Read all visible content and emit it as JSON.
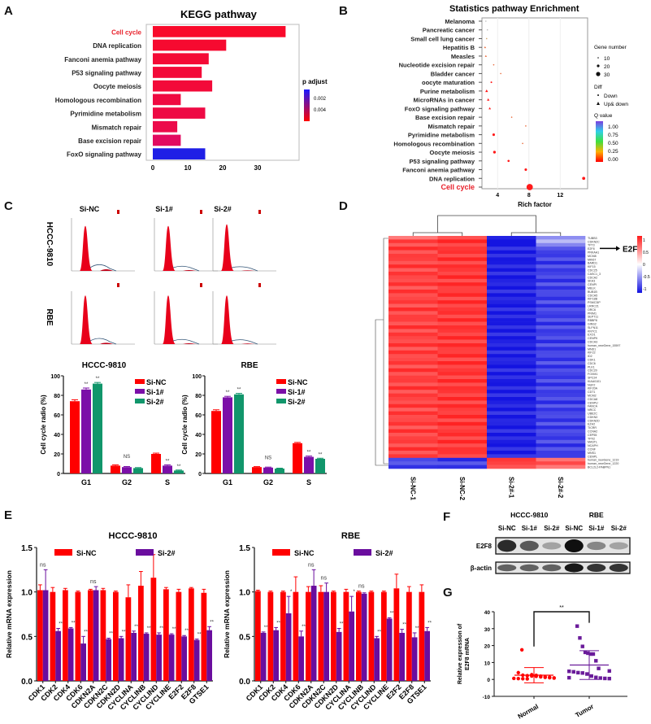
{
  "panels": {
    "A": "A",
    "B": "B",
    "C": "C",
    "D": "D",
    "E": "E",
    "F": "F",
    "G": "G"
  },
  "chart_data": [
    {
      "id": "A",
      "type": "bar",
      "orientation": "horizontal",
      "title": "KEGG pathway",
      "categories": [
        "Cell cycle",
        "DNA replication",
        "Fanconi anemia pathway",
        "P53 signaling pathway",
        "Oocyte meiosis",
        "Homologous recombination",
        "Pyrimidine metabolism",
        "Mismatch repair",
        "Base excision repair",
        "FoxO signaling pathway"
      ],
      "values": [
        38,
        21,
        16,
        14,
        17,
        8,
        15,
        7,
        8,
        15
      ],
      "p_adjust": [
        0.0001,
        0.0003,
        0.0005,
        0.0006,
        0.0006,
        0.0009,
        0.001,
        0.0012,
        0.002,
        0.005
      ],
      "highlight_category": "Cell cycle",
      "highlight_color": "#e8202a",
      "xticks": [
        0,
        10,
        20,
        30
      ],
      "xlim": [
        0,
        40
      ],
      "legend": {
        "title": "p adjust",
        "ticks": [
          "0.002",
          "0.004"
        ],
        "placement": "right",
        "color_low": "#ff0000",
        "color_high": "#1a1aff"
      }
    },
    {
      "id": "B",
      "type": "scatter",
      "title": "Statistics pathway Enrichment",
      "xlabel": "Rich factor",
      "xticks": [
        4,
        8,
        12
      ],
      "xlim": [
        2,
        15.5
      ],
      "highlight_category": "Cell cycle",
      "categories": [
        "Melanoma",
        "Pancreatic cancer",
        "Small cell lung cancer",
        "Hepatitis B",
        "Measles",
        "Nucleotide excision repair",
        "Bladder cancer",
        "oocyte maturation",
        "Purine metabolism",
        "MicroRNAs in cancer",
        "FoxO signaling pathway",
        "Base excision repair",
        "Mismatch repair",
        "Pyrimidine metabolism",
        "Homologous recombination",
        "Oocyte meiosis",
        "P53 signaling pathway",
        "Fanconi anemia pathway",
        "DNA replication",
        "Cell cycle"
      ],
      "points": [
        {
          "y": "Melanoma",
          "x": 2.5,
          "gene_number": 5,
          "diff": "Down",
          "q": 0.6
        },
        {
          "y": "Pancreatic cancer",
          "x": 2.7,
          "gene_number": 6,
          "diff": "Down",
          "q": 0.5
        },
        {
          "y": "Small cell lung cancer",
          "x": 2.6,
          "gene_number": 6,
          "diff": "Down",
          "q": 0.4
        },
        {
          "y": "Hepatitis B",
          "x": 2.4,
          "gene_number": 10,
          "diff": "Up& down",
          "q": 0.05
        },
        {
          "y": "Measles",
          "x": 2.5,
          "gene_number": 10,
          "diff": "Up& down",
          "q": 0.05
        },
        {
          "y": "Nucleotide excision repair",
          "x": 3.5,
          "gene_number": 6,
          "diff": "Down",
          "q": 0.1
        },
        {
          "y": "Bladder cancer",
          "x": 4.4,
          "gene_number": 5,
          "diff": "Down",
          "q": 0.1
        },
        {
          "y": "oocyte maturation",
          "x": 3.2,
          "gene_number": 9,
          "diff": "Down",
          "q": 0.02
        },
        {
          "y": "Purine metabolism",
          "x": 2.6,
          "gene_number": 14,
          "diff": "Up& down",
          "q": 0.0
        },
        {
          "y": "MicroRNAs in cancer",
          "x": 2.8,
          "gene_number": 13,
          "diff": "Up& down",
          "q": 0.0
        },
        {
          "y": "FoxO signaling pathway",
          "x": 3.0,
          "gene_number": 12,
          "diff": "Up& down",
          "q": 0.0
        },
        {
          "y": "Base excision repair",
          "x": 5.8,
          "gene_number": 6,
          "diff": "Down",
          "q": 0.05
        },
        {
          "y": "Mismatch repair",
          "x": 7.6,
          "gene_number": 6,
          "diff": "Down",
          "q": 0.05
        },
        {
          "y": "Pyrimidine metabolism",
          "x": 3.5,
          "gene_number": 14,
          "diff": "Down",
          "q": 0.0
        },
        {
          "y": "Homologous recombination",
          "x": 7.2,
          "gene_number": 6,
          "diff": "Down",
          "q": 0.05
        },
        {
          "y": "Oocyte meiosis",
          "x": 3.6,
          "gene_number": 15,
          "diff": "Down",
          "q": 0.0
        },
        {
          "y": "P53 signaling pathway",
          "x": 5.4,
          "gene_number": 12,
          "diff": "Down",
          "q": 0.0
        },
        {
          "y": "Fanconi anemia pathway",
          "x": 7.6,
          "gene_number": 14,
          "diff": "Down",
          "q": 0.0
        },
        {
          "y": "DNA replication",
          "x": 15.0,
          "gene_number": 17,
          "diff": "Down",
          "q": 0.0
        },
        {
          "y": "Cell cycle",
          "x": 8.1,
          "gene_number": 35,
          "diff": "Down",
          "q": 0.0
        }
      ],
      "legend": {
        "gene_number_title": "Gene number",
        "gene_number_ticks": [
          "10",
          "20",
          "30"
        ],
        "diff_title": "Diff",
        "diff_items": [
          "Down",
          "Up& down"
        ],
        "q_title": "Q value",
        "q_ticks": [
          "1.00",
          "0.75",
          "0.50",
          "0.25",
          "0.00"
        ],
        "placement": "right"
      }
    },
    {
      "id": "C-flow",
      "type": "histogram",
      "columns": [
        "Si-NC",
        "Si-1#",
        "Si-2#"
      ],
      "rows": [
        "HCCC-9810",
        "RBE"
      ],
      "g1_peak_fraction": [
        [
          0.85,
          0.85,
          0.88
        ],
        [
          0.92,
          0.92,
          0.92
        ]
      ],
      "s_shoulder_fraction": [
        [
          0.12,
          0.06,
          0.04
        ],
        [
          0.1,
          0.06,
          0.05
        ]
      ]
    },
    {
      "id": "C-bar-HCCC",
      "type": "bar",
      "title": "HCCC-9810",
      "ylabel": "Cell cycle radio (%)",
      "categories": [
        "G1",
        "G2",
        "S"
      ],
      "ylim": [
        0,
        100
      ],
      "yticks": [
        0,
        20,
        40,
        60,
        80,
        100
      ],
      "series": [
        {
          "name": "Si-NC",
          "color": "#ff0000",
          "values": [
            74,
            8,
            20
          ],
          "errors": [
            1.5,
            0.8,
            0.8
          ]
        },
        {
          "name": "Si-1#",
          "color": "#7b0fa8",
          "values": [
            86,
            6.5,
            8
          ],
          "errors": [
            1.5,
            0.6,
            0.8
          ]
        },
        {
          "name": "Si-2#",
          "color": "#11966b",
          "values": [
            92,
            5.5,
            3
          ],
          "errors": [
            1.2,
            0.5,
            0.5
          ]
        }
      ],
      "annotations": [
        {
          "category": "G1",
          "series": "Si-1#",
          "text": "**"
        },
        {
          "category": "G1",
          "series": "Si-2#",
          "text": "**"
        },
        {
          "category": "G2",
          "series": "Si-1#",
          "text": "NS"
        },
        {
          "category": "S",
          "series": "Si-1#",
          "text": "**"
        },
        {
          "category": "S",
          "series": "Si-2#",
          "text": "**"
        }
      ],
      "legend_placement": "top-right"
    },
    {
      "id": "C-bar-RBE",
      "type": "bar",
      "title": "RBE",
      "ylabel": "Cell cycle radio (%)",
      "categories": [
        "G1",
        "G2",
        "S"
      ],
      "ylim": [
        0,
        100
      ],
      "yticks": [
        0,
        20,
        40,
        60,
        80,
        100
      ],
      "series": [
        {
          "name": "Si-NC",
          "color": "#ff0000",
          "values": [
            64,
            6.5,
            31
          ],
          "errors": [
            1.2,
            0.5,
            0.8
          ]
        },
        {
          "name": "Si-1#",
          "color": "#7b0fa8",
          "values": [
            78,
            6,
            17
          ],
          "errors": [
            1.0,
            0.5,
            0.8
          ]
        },
        {
          "name": "Si-2#",
          "color": "#11966b",
          "values": [
            81,
            5,
            15
          ],
          "errors": [
            1.0,
            0.4,
            0.6
          ]
        }
      ],
      "annotations": [
        {
          "category": "G1",
          "series": "Si-1#",
          "text": "**"
        },
        {
          "category": "G1",
          "series": "Si-2#",
          "text": "**"
        },
        {
          "category": "G2",
          "series": "Si-1#",
          "text": "NS"
        },
        {
          "category": "S",
          "series": "Si-1#",
          "text": "**"
        },
        {
          "category": "S",
          "series": "Si-2#",
          "text": "**"
        }
      ],
      "legend_placement": "top-right"
    },
    {
      "id": "D",
      "type": "heatmap",
      "columns": [
        "Si-NC-1",
        "Si-NC-2",
        "Si-2#-1",
        "Si-2#-2"
      ],
      "rows": [
        "TUBB3",
        "CDKN2C",
        "TP73",
        "E2F8",
        "PRKAA1",
        "MCM8",
        "MKI67",
        "BARD1",
        "KIF15",
        "CDC25",
        "CASC1_3",
        "CDCA2",
        "SKA3",
        "CENPI",
        "MELK",
        "BUB1B",
        "CDCA5",
        "KIF18B",
        "PSMC3IP",
        "LRRC21",
        "ORC6",
        "PRIM1",
        "SEPT11",
        "RBBP8",
        "GINS2",
        "SLFN11",
        "KNTC1",
        "EXO1",
        "CENPK",
        "CDCA3",
        "human_newGene_15597",
        "MND1",
        "KIF22",
        "ID2",
        "CDK1",
        "CDC6",
        "PLK1",
        "CDC20",
        "FOXM1",
        "SPC24",
        "KIAA0101",
        "NUF2",
        "KIF20A",
        "CDT1",
        "MCM2",
        "CDCA8",
        "CENPU",
        "FANCA",
        "NRCC",
        "UBE2C",
        "CDKN3",
        "CDKN2D",
        "EZH2",
        "TICRR",
        "CCNA2",
        "CEP55",
        "TPX2",
        "MASTL",
        "NCAPH",
        "CCNF",
        "MNS1",
        "CENPL",
        "human_newGene_1219",
        "human_newGene_1220",
        "BCL2L2-PABPN1"
      ],
      "highlight_row": "E2F8",
      "highlight_label": "E2F8",
      "color_scale": {
        "low": "#1010e0",
        "mid": "#ffffff",
        "high": "#ff1a1a",
        "ticks": [
          "1",
          "0.5",
          "0",
          "-0.5",
          "-1"
        ]
      },
      "values_summary": {
        "Si-NC-1": 0.85,
        "Si-NC-2": 0.9,
        "Si-2#-1": -0.95,
        "Si-2#-2": -0.8
      }
    },
    {
      "id": "E-HCCC",
      "type": "bar",
      "title": "HCCC-9810",
      "ylabel": "Relative mRNA expression",
      "ylim": [
        0,
        1.5
      ],
      "yticks": [
        "0.0",
        "0.5",
        "1.0",
        "1.5"
      ],
      "categories": [
        "CDK1",
        "CDK2",
        "CDK4",
        "CDK6",
        "CDKN2A",
        "CDKN2C",
        "CDKN2D",
        "CYCLINA",
        "CYCLINB",
        "CYCLIND",
        "CYCLINE",
        "E2F2",
        "E2F8",
        "GTSE1"
      ],
      "series": [
        {
          "name": "Si-NC",
          "color": "#ff0000",
          "values": [
            1.02,
            1.0,
            1.02,
            1.0,
            1.02,
            1.02,
            1.0,
            0.94,
            1.07,
            1.16,
            1.03,
            1.0,
            1.04,
            0.99
          ],
          "errors": [
            0.06,
            0.05,
            0.02,
            0.01,
            0.01,
            0.02,
            0.01,
            0.14,
            0.16,
            0.26,
            0.02,
            0.03,
            0.01,
            0.04
          ]
        },
        {
          "name": "Si-2#",
          "color": "#6a0d9e",
          "values": [
            1.02,
            0.56,
            0.59,
            0.42,
            1.02,
            0.47,
            0.48,
            0.54,
            0.53,
            0.52,
            0.52,
            0.5,
            0.46,
            0.57
          ],
          "errors": [
            0.23,
            0.03,
            0.01,
            0.08,
            0.04,
            0.01,
            0.02,
            0.02,
            0.01,
            0.02,
            0.01,
            0.01,
            0.01,
            0.04
          ]
        }
      ],
      "significance": [
        "ns",
        "**",
        "**",
        "**",
        "ns",
        "**",
        "**",
        "**",
        "**",
        "**",
        "**",
        "**",
        "**",
        "**"
      ],
      "legend_placement": "top"
    },
    {
      "id": "E-RBE",
      "type": "bar",
      "title": "RBE",
      "ylabel": "Relative mRNA expression",
      "ylim": [
        0,
        1.5
      ],
      "yticks": [
        "0.0",
        "0.5",
        "1.0",
        "1.5"
      ],
      "categories": [
        "CDK1",
        "CDK2",
        "CDK4",
        "CDK6",
        "CDKN2A",
        "CDKN2C",
        "CDKN2D",
        "CYCLINA",
        "CYCLINB",
        "CYCLIND",
        "CYCLINE",
        "E2F2",
        "E2F8",
        "GTSE1"
      ],
      "series": [
        {
          "name": "Si-NC",
          "color": "#ff0000",
          "values": [
            1.01,
            1.0,
            1.0,
            1.0,
            1.0,
            1.0,
            1.0,
            1.0,
            1.0,
            1.0,
            1.0,
            1.04,
            1.0,
            1.0
          ],
          "errors": [
            0.01,
            0.01,
            0.01,
            0.17,
            0.06,
            0.07,
            0.01,
            0.03,
            0.01,
            0.01,
            0.01,
            0.16,
            0.06,
            0.08
          ]
        },
        {
          "name": "Si-2#",
          "color": "#6a0d9e",
          "values": [
            0.54,
            0.57,
            0.76,
            0.5,
            1.07,
            1.0,
            0.55,
            0.78,
            0.98,
            0.48,
            0.7,
            0.54,
            0.49,
            0.56
          ],
          "errors": [
            0.01,
            0.03,
            0.19,
            0.06,
            0.18,
            0.1,
            0.04,
            0.17,
            0.01,
            0.02,
            0.01,
            0.04,
            0.05,
            0.04
          ]
        }
      ],
      "significance": [
        "**",
        "**",
        "*",
        "**",
        "ns",
        "ns",
        "**",
        "*",
        "ns",
        "**",
        "**",
        "**",
        "**",
        "**"
      ],
      "legend_placement": "top"
    },
    {
      "id": "F",
      "type": "western-blot",
      "groups": [
        "HCCC-9810",
        "RBE"
      ],
      "lanes": [
        "Si-NC",
        "Si-1#",
        "Si-2#",
        "Si-NC",
        "Si-1#",
        "Si-2#"
      ],
      "rows": [
        {
          "label": "E2F8",
          "intensity": [
            0.85,
            0.6,
            0.2,
            1.0,
            0.35,
            0.2
          ]
        },
        {
          "label": "β-actin",
          "intensity": [
            0.55,
            0.55,
            0.55,
            0.95,
            0.8,
            0.8
          ]
        }
      ]
    },
    {
      "id": "G",
      "type": "scatter",
      "ylabel": "Relative expression of E2F8 mRNA",
      "categories": [
        "Normal",
        "Tumor"
      ],
      "ylim": [
        -10,
        40
      ],
      "yticks": [
        -10,
        0,
        10,
        20,
        30,
        40
      ],
      "significance": "**",
      "series": [
        {
          "name": "Normal",
          "color": "#ff0000",
          "marker": "circle",
          "values": [
            17.5,
            4,
            2.5,
            2.2,
            2,
            1.8,
            1.5,
            1.2,
            1,
            0.8,
            0.6,
            0.5,
            0.4,
            0.3,
            2.8,
            2.4,
            1.9,
            1.6,
            1.3,
            0.9
          ],
          "mean": 2.5,
          "sd": 4.5
        },
        {
          "name": "Tumor",
          "color": "#6a1b9a",
          "marker": "square",
          "values": [
            31.5,
            24.5,
            19.5,
            16,
            15.5,
            15,
            15,
            11,
            6.5,
            5,
            4.8,
            4.5,
            4,
            3.8,
            3.2,
            2,
            1.2,
            0.8,
            0.6,
            0.5,
            1
          ],
          "mean": 8.5,
          "sd": 8.5
        }
      ]
    }
  ],
  "labels": {
    "c_cols": [
      "Si-NC",
      "Si-1#",
      "Si-2#"
    ],
    "c_rows": [
      "HCCC-9810",
      "RBE"
    ],
    "d_arrow_label": "E2F8"
  }
}
